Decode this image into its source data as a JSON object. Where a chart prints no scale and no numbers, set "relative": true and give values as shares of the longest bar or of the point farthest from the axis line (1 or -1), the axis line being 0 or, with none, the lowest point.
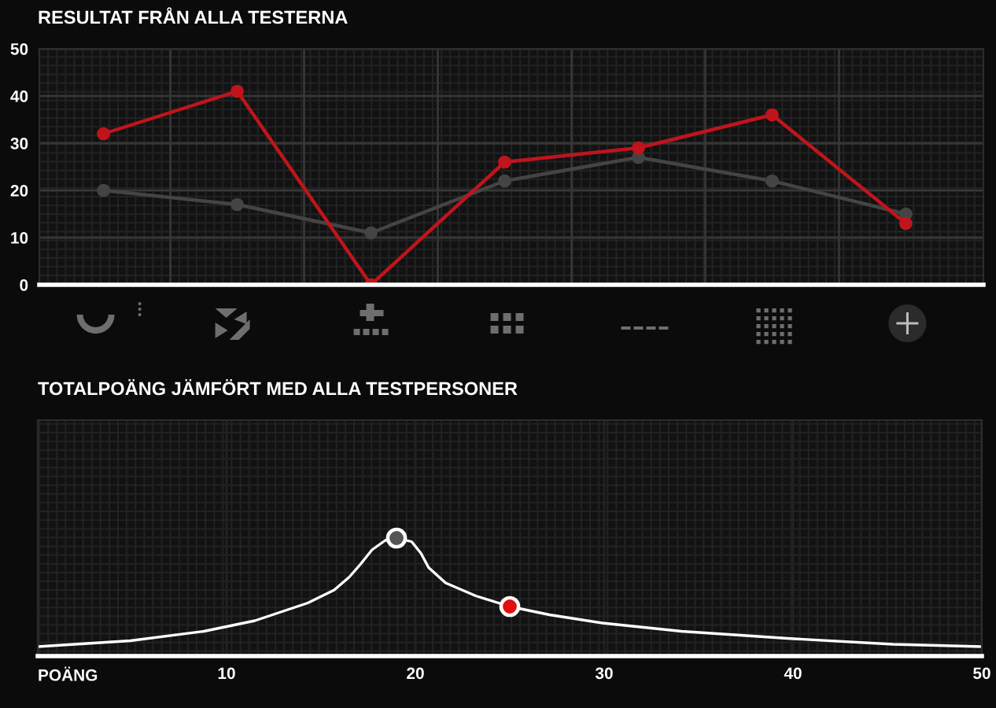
{
  "chart_data": [
    {
      "type": "line",
      "title": "RESULTAT FRÅN ALLA TESTERNA",
      "categories": [
        null,
        null,
        null,
        null,
        null,
        null,
        null
      ],
      "series": [
        {
          "color": "#444444",
          "values": [
            20,
            17,
            11,
            22,
            27,
            22,
            15
          ]
        },
        {
          "color": "#c0141c",
          "values": [
            32,
            41,
            0,
            26,
            29,
            36,
            13
          ]
        }
      ],
      "ylim": [
        0,
        50
      ],
      "yticks": [
        0,
        10,
        20,
        30,
        40,
        50
      ],
      "grid": true,
      "marker": "circle",
      "tick_labels": "y"
    },
    {
      "type": "line",
      "title": "TOTALPOÄNG JÄMFÖRT MED ALLA TESTPERSONER",
      "xlabel": "POÄNG",
      "relative": true,
      "xlim": [
        0,
        50
      ],
      "xticks": [
        10,
        20,
        30,
        40,
        50
      ],
      "grid": true,
      "series": [
        {
          "color": "#ffffff",
          "x": [
            0,
            4.9,
            8.8,
            11.5,
            14.3,
            15.7,
            16.5,
            17.1,
            17.7,
            18.4,
            19,
            19.8,
            20.3,
            20.7,
            21.6,
            23.2,
            25,
            27.1,
            29.9,
            34.1,
            39.7,
            45.3,
            50
          ],
          "values": [
            0.08,
            0.13,
            0.21,
            0.3,
            0.45,
            0.56,
            0.67,
            0.78,
            0.9,
            0.98,
            1,
            0.97,
            0.87,
            0.75,
            0.62,
            0.51,
            0.42,
            0.35,
            0.28,
            0.21,
            0.15,
            0.1,
            0.08
          ]
        },
        {
          "type": "scatter",
          "color": "#555555",
          "x": [
            19
          ],
          "values": [
            1
          ]
        },
        {
          "type": "scatter",
          "color": "#e01010",
          "x": [
            25
          ],
          "values": [
            0.42
          ]
        }
      ]
    }
  ]
}
